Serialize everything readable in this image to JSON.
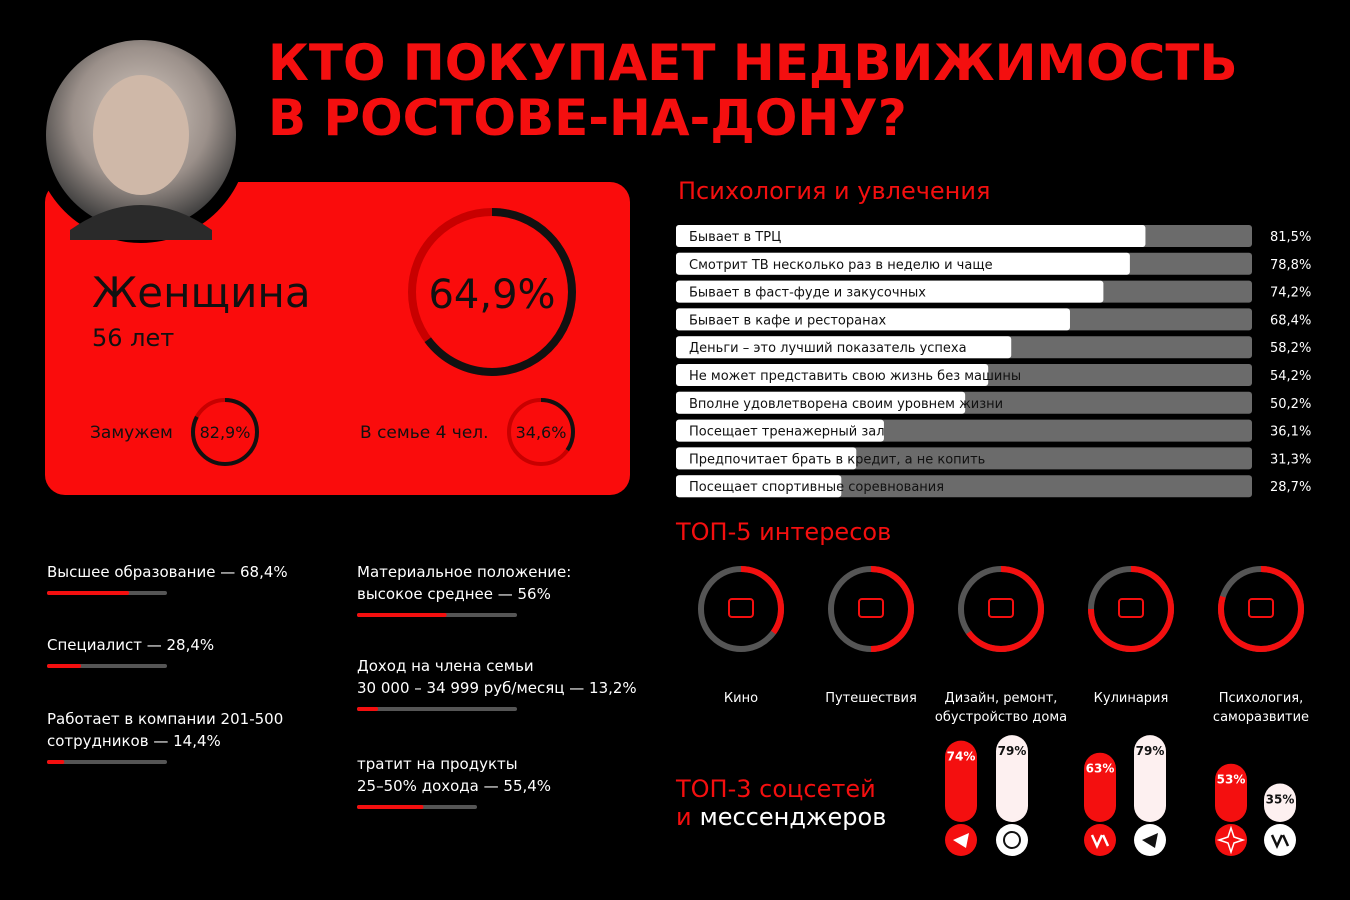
{
  "header": {
    "title_lines": [
      "КТО ПОКУПАЕТ НЕДВИЖИМОСТЬ",
      "В РОСТОВЕ-НА-ДОНУ?"
    ]
  },
  "profile": {
    "gender": "Женщина",
    "age": "56 лет",
    "share": {
      "value": 64.9,
      "label": "64,9%"
    },
    "married": {
      "text": "Замужем",
      "value": 82.9,
      "label": "82,9%"
    },
    "family": {
      "text": "В семье 4 чел.",
      "value": 34.6,
      "label": "34,6%"
    }
  },
  "stats": {
    "left": [
      {
        "lines": [
          "Высшее образование — 68,4%"
        ],
        "value": 68.4
      },
      {
        "lines": [
          "Специалист — 28,4%"
        ],
        "value": 28.4
      },
      {
        "lines": [
          "Работает в компании 201-500",
          "сотрудников — 14,4%"
        ],
        "value": 14.4
      }
    ],
    "right": [
      {
        "lines": [
          "Материальное положение:",
          "высокое среднее — 56%"
        ],
        "value": 56
      },
      {
        "lines": [
          "Доход на члена семьи",
          "30 000 – 34 999 руб/месяц — 13,2%"
        ],
        "value": 13.2
      },
      {
        "lines": [
          "тратит на продукты",
          "25–50% дохода — 55,4%"
        ],
        "value": 55.4
      }
    ]
  },
  "psychology": {
    "title": "Психология и увлечения",
    "items": [
      {
        "name": "Бывает в ТРЦ",
        "value": 81.5,
        "label": "81,5%"
      },
      {
        "name": "Смотрит ТВ несколько раз в неделю и чаще",
        "value": 78.8,
        "label": "78,8%"
      },
      {
        "name": "Бывает в фаст-фуде и закусочных",
        "value": 74.2,
        "label": "74,2%"
      },
      {
        "name": "Бывает в кафе и ресторанах",
        "value": 68.4,
        "label": "68,4%"
      },
      {
        "name": "Деньги – это лучший показатель успеха",
        "value": 58.2,
        "label": "58,2%"
      },
      {
        "name": "Не может представить свою жизнь без машины",
        "value": 54.2,
        "label": "54,2%"
      },
      {
        "name": "Вполне удовлетворена своим уровнем жизни",
        "value": 50.2,
        "label": "50,2%"
      },
      {
        "name": "Посещает тренажерный зал",
        "value": 36.1,
        "label": "36,1%"
      },
      {
        "name": "Предпочитает брать в кредит, а не копить",
        "value": 31.3,
        "label": "31,3%"
      },
      {
        "name": "Посещает спортивные соревнования",
        "value": 28.7,
        "label": "28,7%"
      }
    ]
  },
  "interests": {
    "title": "ТОП-5 интересов",
    "items": [
      {
        "lines": [
          "Кино"
        ],
        "value": 35
      },
      {
        "lines": [
          "Путешествия"
        ],
        "value": 50
      },
      {
        "lines": [
          "Дизайн, ремонт,",
          "обустройство дома"
        ],
        "value": 65
      },
      {
        "lines": [
          "Кулинария"
        ],
        "value": 75
      },
      {
        "lines": [
          "Психология,",
          "саморазвитие"
        ],
        "value": 80
      }
    ]
  },
  "socials": {
    "title_line1": "ТОП-3 соцсетей",
    "title_prefix": "и",
    "title_rest": "мессенджеров",
    "groups": [
      [
        {
          "value": 74,
          "label": "74%"
        },
        {
          "value": 79,
          "label": "79%"
        }
      ],
      [
        {
          "value": 63,
          "label": "63%"
        },
        {
          "value": 79,
          "label": "79%"
        }
      ],
      [
        {
          "value": 53,
          "label": "53%"
        },
        {
          "value": 35,
          "label": "35%"
        }
      ]
    ]
  }
}
